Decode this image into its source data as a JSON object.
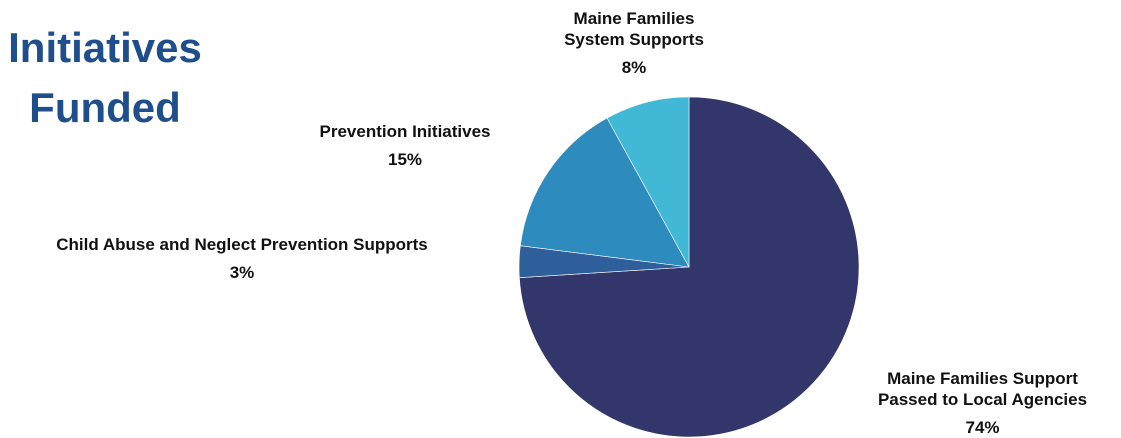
{
  "title_lines": [
    "Initiatives",
    "Funded"
  ],
  "chart_data": {
    "type": "pie",
    "title": "Initiatives Funded",
    "start_angle_deg": 0,
    "direction": "clockwise",
    "slices": [
      {
        "label_lines": [
          "Maine Families Support",
          "Passed to Local Agencies"
        ],
        "value": 74,
        "pct_label": "74%",
        "color": "#32366b"
      },
      {
        "label_lines": [
          "Child Abuse and Neglect Prevention Supports"
        ],
        "value": 3,
        "pct_label": "3%",
        "color": "#2f5f9a"
      },
      {
        "label_lines": [
          "Prevention Initiatives"
        ],
        "value": 15,
        "pct_label": "15%",
        "color": "#2e8bbd"
      },
      {
        "label_lines": [
          "Maine Families",
          "System Supports"
        ],
        "value": 8,
        "pct_label": "8%",
        "color": "#41b8d6"
      }
    ]
  }
}
